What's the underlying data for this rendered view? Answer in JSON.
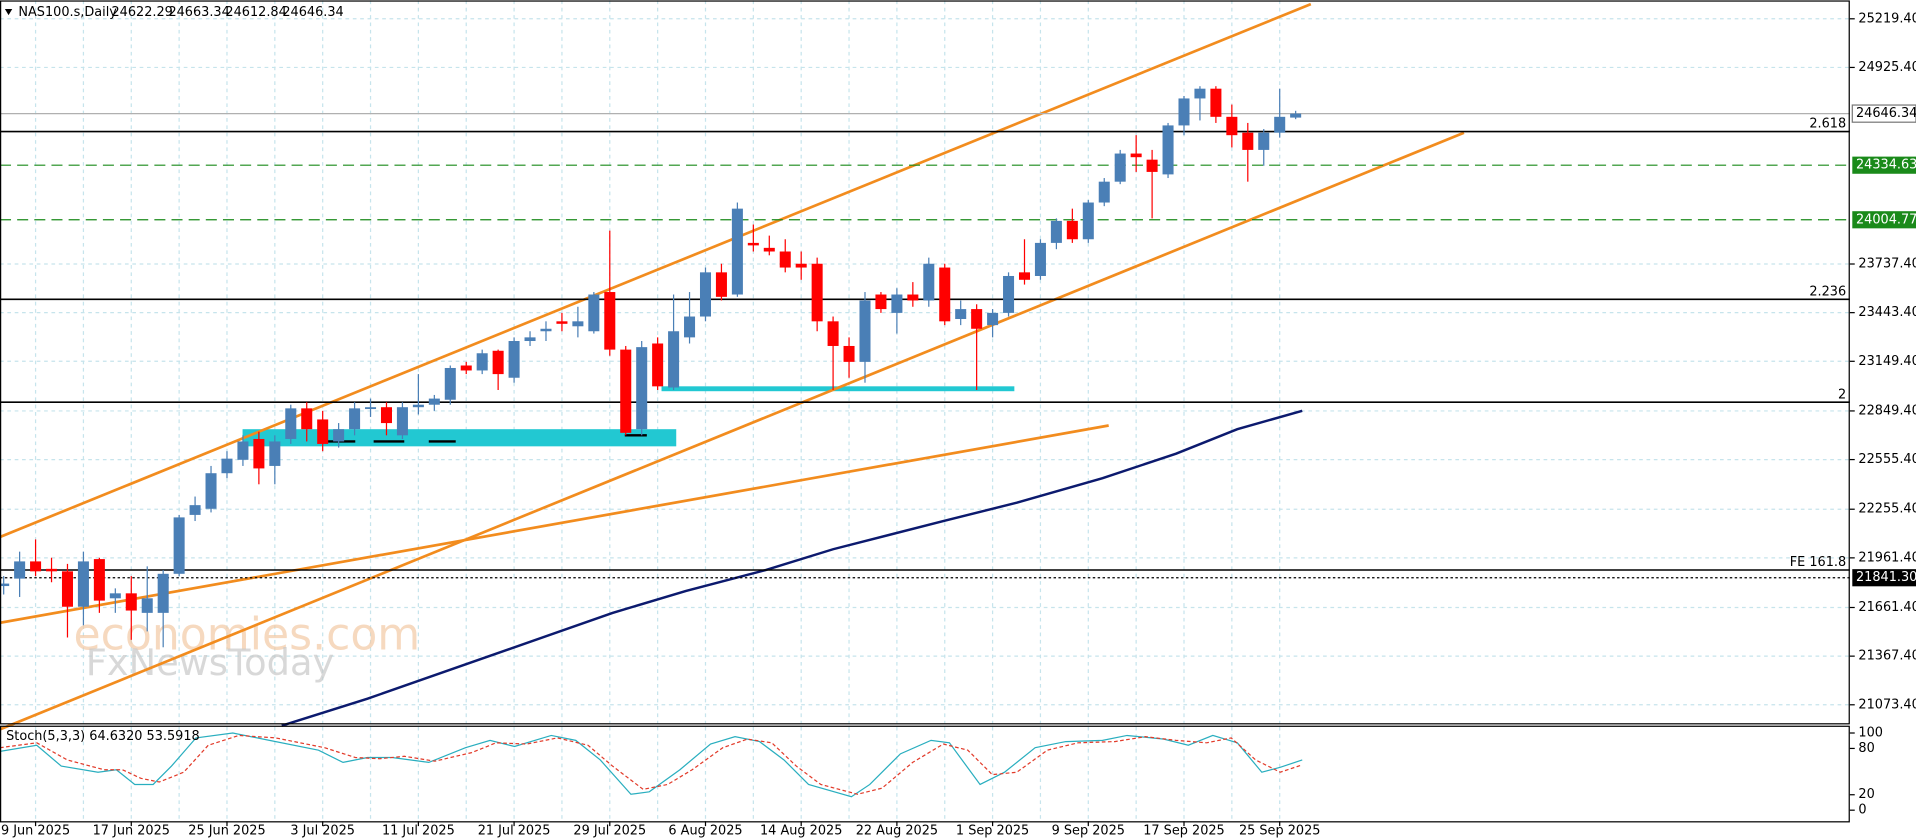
{
  "chart_data": {
    "type": "candlestick",
    "title": "NAS100.s,Daily",
    "categories": [
      null,
      null,
      "9 Jun 2025",
      null,
      null,
      null,
      null,
      null,
      "17 Jun 2025",
      null,
      null,
      null,
      null,
      null,
      "25 Jun 2025",
      null,
      null,
      null,
      null,
      null,
      "3 Jul 2025",
      null,
      null,
      null,
      null,
      null,
      "11 Jul 2025",
      null,
      null,
      null,
      null,
      null,
      "21 Jul 2025",
      null,
      null,
      null,
      null,
      null,
      "29 Jul 2025",
      null,
      null,
      null,
      null,
      null,
      "6 Aug 2025",
      null,
      null,
      null,
      null,
      null,
      "14 Aug 2025",
      null,
      null,
      null,
      null,
      null,
      "22 Aug 2025",
      null,
      null,
      null,
      null,
      null,
      "1 Sep 2025",
      null,
      null,
      null,
      null,
      null,
      "9 Sep 2025",
      null,
      null,
      null,
      null,
      null,
      "17 Sep 2025",
      null,
      null,
      null,
      null,
      null,
      "25 Sep 2025",
      null
    ],
    "open": [
      21791,
      21836,
      21940,
      21895,
      21880,
      21666,
      21954,
      21717,
      21747,
      21629,
      21629,
      21865,
      22221,
      22258,
      22473,
      22554,
      22680,
      22517,
      22680,
      22865,
      22798,
      22665,
      22739,
      22865,
      22872,
      22702,
      22872,
      22887,
      22917,
      23124,
      23094,
      23213,
      23050,
      23272,
      23331,
      23391,
      23361,
      23331,
      23568,
      23220,
      22739,
      23257,
      22991,
      23294,
      23420,
      23687,
      23553,
      23865,
      23835,
      23813,
      23739,
      23739,
      23391,
      23242,
      23146,
      23553,
      23442,
      23553,
      23517,
      23716,
      23405,
      23465,
      23368,
      23442,
      23687,
      23665,
      23865,
      23998,
      23887,
      24109,
      24235,
      24405,
      24368,
      24279,
      24575,
      24738,
      24797,
      24627,
      24531,
      24427,
      24531,
      24622.29
    ],
    "high": [
      21851,
      21999,
      22073,
      21962,
      21925,
      21999,
      21962,
      21777,
      21851,
      21910,
      21888,
      22221,
      22332,
      22517,
      22606,
      22702,
      22724,
      22702,
      22887,
      22902,
      22850,
      22776,
      22902,
      22924,
      22902,
      22902,
      23072,
      22946,
      23124,
      23146,
      23220,
      23220,
      23294,
      23331,
      23391,
      23442,
      23479,
      23568,
      23939,
      23242,
      23272,
      23294,
      23553,
      23568,
      23716,
      23739,
      24109,
      23976,
      23909,
      23887,
      23813,
      23776,
      23420,
      23294,
      23568,
      23568,
      23591,
      23628,
      23776,
      23739,
      23517,
      23494,
      23465,
      23687,
      23887,
      23887,
      24013,
      24072,
      24124,
      24257,
      24427,
      24516,
      24427,
      24590,
      24753,
      24812,
      24812,
      24701,
      24590,
      24553,
      24797,
      24663.34
    ],
    "low": [
      21740,
      21725,
      21851,
      21814,
      21480,
      21554,
      21629,
      21629,
      21466,
      21517,
      21421,
      21851,
      22184,
      22236,
      22443,
      22517,
      22406,
      22406,
      22650,
      22665,
      22606,
      22628,
      22702,
      22813,
      22702,
      22680,
      22828,
      22850,
      22887,
      23072,
      23072,
      22976,
      23020,
      23242,
      23272,
      23331,
      23294,
      23317,
      23183,
      22702,
      22702,
      22976,
      22976,
      23257,
      23391,
      23517,
      23539,
      23813,
      23790,
      23687,
      23642,
      23331,
      22976,
      23050,
      23020,
      23442,
      23317,
      23479,
      23479,
      23368,
      23368,
      22976,
      23294,
      23420,
      23613,
      23642,
      23827,
      23865,
      23865,
      24087,
      24220,
      24294,
      24013,
      24257,
      24516,
      24605,
      24590,
      24442,
      24235,
      24331,
      24501,
      24612.84
    ],
    "close": [
      21806,
      21940,
      21880,
      21880,
      21666,
      21940,
      21703,
      21747,
      21643,
      21717,
      21865,
      22206,
      22280,
      22473,
      22561,
      22665,
      22502,
      22665,
      22865,
      22739,
      22650,
      22739,
      22865,
      22872,
      22776,
      22872,
      22887,
      22924,
      23109,
      23094,
      23198,
      23072,
      23272,
      23294,
      23346,
      23376,
      23391,
      23553,
      23220,
      22717,
      23235,
      22998,
      23331,
      23420,
      23687,
      23539,
      24072,
      23850,
      23813,
      23716,
      23716,
      23391,
      23242,
      23146,
      23517,
      23465,
      23553,
      23517,
      23739,
      23391,
      23465,
      23346,
      23442,
      23665,
      23642,
      23865,
      23998,
      23887,
      24109,
      24235,
      24405,
      24383,
      24294,
      24575,
      24738,
      24797,
      24627,
      24516,
      24427,
      24531,
      24627,
      24646.34
    ],
    "up_color": "#4a7fb6",
    "down_color": "#ff0000",
    "ylim": [
      20962.1,
      25330.5
    ],
    "yticks": [
      {
        "value": 25219.4,
        "label": "25219.40"
      },
      {
        "value": 24925.4,
        "label": "24925.40"
      },
      {
        "value": 23737.4,
        "label": "23737.40"
      },
      {
        "value": 23443.4,
        "label": "23443.40"
      },
      {
        "value": 23149.4,
        "label": "23149.40"
      },
      {
        "value": 22849.4,
        "label": "22849.40"
      },
      {
        "value": 22555.4,
        "label": "22555.40"
      },
      {
        "value": 22255.4,
        "label": "22255.40"
      },
      {
        "value": 21961.4,
        "label": "21961.40"
      },
      {
        "value": 21661.4,
        "label": "21661.40"
      },
      {
        "value": 21367.4,
        "label": "21367.40"
      },
      {
        "value": 21073.4,
        "label": "21073.40"
      }
    ],
    "grid": true,
    "levels": [
      {
        "label": "2.618",
        "value": 24538
      },
      {
        "label": "2.236",
        "value": 23524
      },
      {
        "label": "2",
        "value": 22902
      },
      {
        "label": "FE 161.8",
        "value": 21888
      }
    ],
    "price_lines": [
      {
        "value": 24334.63,
        "label": "24334.63",
        "color": "#1a8a1a"
      },
      {
        "value": 24004.77,
        "label": "24004.77",
        "color": "#1a8a1a"
      },
      {
        "value": 21841.3,
        "label": "21841.30",
        "color": "#000000"
      }
    ],
    "stoch": {
      "label": "Stoch(5,3,3) 64.6320 53.5918",
      "ylim": [
        0,
        100
      ],
      "yticks": [
        0,
        20,
        80,
        100
      ]
    },
    "watermark": [
      "economies.com",
      "FxNewsToday"
    ]
  }
}
